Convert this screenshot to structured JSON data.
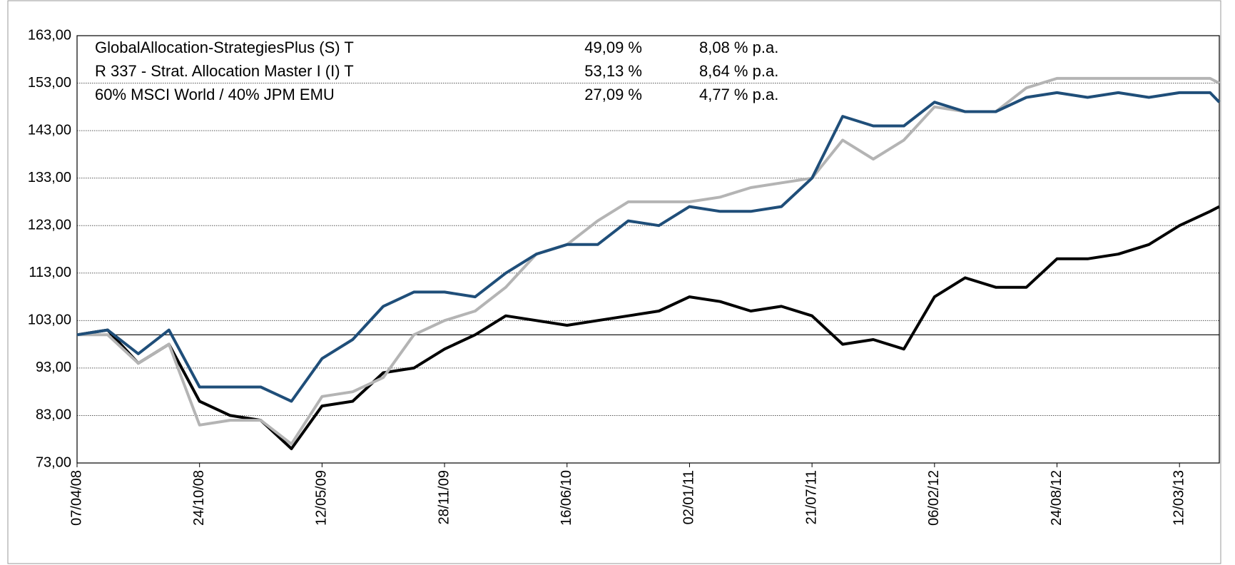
{
  "chart_data": {
    "type": "line",
    "x": [
      "07/04/08",
      "27/05/08",
      "16/07/08",
      "04/09/08",
      "24/10/08",
      "13/12/08",
      "01/02/09",
      "23/03/09",
      "12/05/09",
      "01/07/09",
      "20/08/09",
      "09/10/09",
      "28/11/09",
      "17/01/10",
      "08/03/10",
      "27/04/10",
      "16/06/10",
      "05/08/10",
      "24/09/10",
      "13/11/10",
      "02/01/11",
      "21/02/11",
      "12/04/11",
      "01/06/11",
      "21/07/11",
      "09/09/11",
      "29/10/11",
      "18/12/11",
      "06/02/12",
      "27/03/12",
      "16/05/12",
      "05/07/12",
      "24/08/12",
      "13/10/12",
      "02/12/12",
      "21/01/13",
      "12/03/13",
      "01/05/13",
      "16/05/13"
    ],
    "series": [
      {
        "name": "GlobalAllocation-StrategiesPlus (S) T",
        "total_return": "49,09 %",
        "annual_return": "8,08 % p.a.",
        "color": "#1f4e79",
        "values": [
          100,
          101,
          96,
          101,
          89,
          89,
          89,
          86,
          95,
          99,
          106,
          109,
          109,
          108,
          113,
          117,
          119,
          119,
          124,
          123,
          127,
          126,
          126,
          127,
          133,
          146,
          144,
          144,
          149,
          147,
          147,
          150,
          151,
          150,
          151,
          150,
          151,
          151,
          149
        ]
      },
      {
        "name": "R 337 - Strat. Allocation Master I (I) T",
        "total_return": "53,13 %",
        "annual_return": "8,64 % p.a.",
        "color": "#b4b4b4",
        "values": [
          100,
          100,
          94,
          98,
          81,
          82,
          82,
          77,
          87,
          88,
          91,
          100,
          103,
          105,
          110,
          117,
          119,
          124,
          128,
          128,
          128,
          129,
          131,
          132,
          133,
          141,
          137,
          141,
          148,
          147,
          147,
          152,
          154,
          154,
          154,
          154,
          154,
          154,
          153
        ]
      },
      {
        "name": "60% MSCI World / 40% JPM EMU",
        "total_return": "27,09 %",
        "annual_return": "4,77 % p.a.",
        "color": "#000000",
        "values": [
          100,
          101,
          94,
          98,
          86,
          83,
          82,
          76,
          85,
          86,
          92,
          93,
          97,
          100,
          104,
          103,
          102,
          103,
          104,
          105,
          108,
          107,
          105,
          106,
          104,
          98,
          99,
          97,
          108,
          112,
          110,
          110,
          116,
          116,
          117,
          119,
          123,
          126,
          127
        ]
      }
    ],
    "xlim": [
      "07/04/08",
      "16/05/13"
    ],
    "xticks": [
      "07/04/08",
      "24/10/08",
      "12/05/09",
      "28/11/09",
      "16/06/10",
      "02/01/11",
      "21/07/11",
      "06/02/12",
      "24/08/12",
      "12/03/13"
    ],
    "ylim": [
      73,
      163
    ],
    "yticks": [
      {
        "value": 73,
        "label": "73,00"
      },
      {
        "value": 83,
        "label": "83,00"
      },
      {
        "value": 93,
        "label": "93,00"
      },
      {
        "value": 103,
        "label": "103,00"
      },
      {
        "value": 113,
        "label": "113,00"
      },
      {
        "value": 123,
        "label": "123,00"
      },
      {
        "value": 133,
        "label": "133,00"
      },
      {
        "value": 143,
        "label": "143,00"
      },
      {
        "value": 153,
        "label": "153,00"
      },
      {
        "value": 163,
        "label": "163,00"
      }
    ],
    "baseline": 100,
    "grid": true
  }
}
